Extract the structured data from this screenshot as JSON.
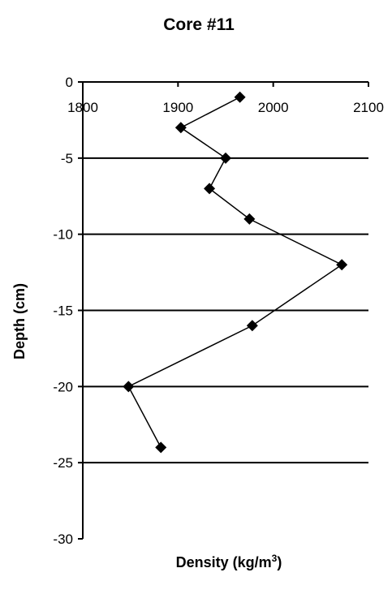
{
  "chart_data": {
    "type": "scatter",
    "title": "Core #11",
    "xlabel": "Density (kg/m",
    "xlabel_superscript": "3",
    "xlabel_suffix": ")",
    "ylabel": "Depth (cm)",
    "xlim": [
      1800,
      2100
    ],
    "ylim": [
      -30,
      0
    ],
    "x_ticks": [
      1800,
      1900,
      2000,
      2100
    ],
    "y_ticks": [
      0,
      -5,
      -10,
      -15,
      -20,
      -25,
      -30
    ],
    "x_axis_position": "top",
    "grid": "horizontal lines at y ticks",
    "legend": "none",
    "marker": "diamond",
    "series": [
      {
        "x": [
          1965,
          1903,
          1950,
          1933,
          1975,
          2072,
          1978,
          1848,
          1882
        ],
        "y": [
          -1,
          -3,
          -5,
          -7,
          -9,
          -12,
          -16,
          -20,
          -24
        ]
      }
    ],
    "colors": {
      "line": "#000000",
      "marker": "#000000",
      "grid": "#000000"
    }
  }
}
